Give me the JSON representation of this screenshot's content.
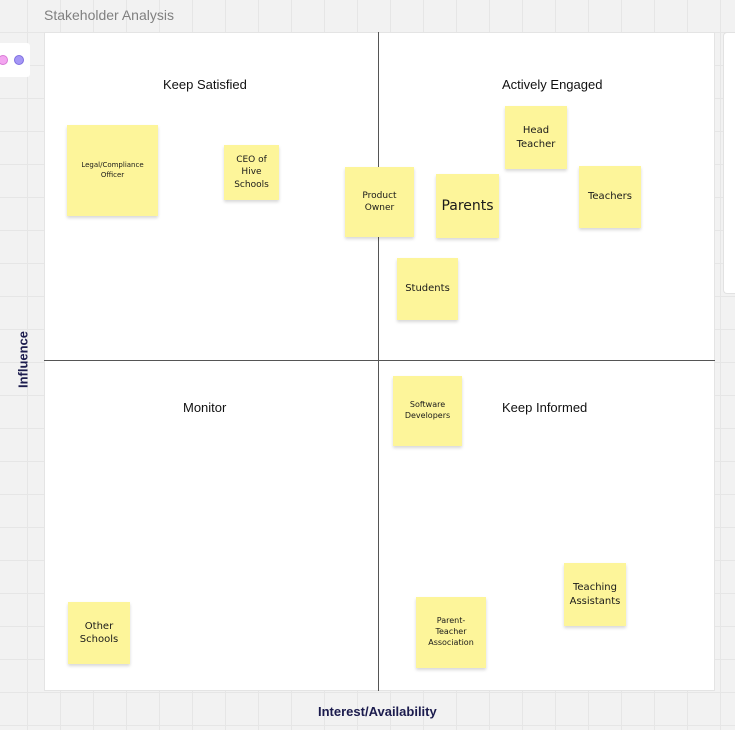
{
  "frame": {
    "title": "Stakeholder Analysis"
  },
  "axes": {
    "x_label": "Interest/Availability",
    "y_label": "Influence"
  },
  "quadrants": {
    "top_left": "Keep Satisfied",
    "top_right": "Actively Engaged",
    "bottom_left": "Monitor",
    "bottom_right": "Keep Informed"
  },
  "notes": {
    "legal": "Legal/Compliance\nOfficer",
    "ceo": "CEO of\nHive\nSchools",
    "product_owner": "Product\nOwner",
    "parents": "Parents",
    "head_teacher": "Head\nTeacher",
    "teachers": "Teachers",
    "students": "Students",
    "software_devs": "Software\nDevelopers",
    "other_schools": "Other\nSchools",
    "pta": "Parent-\nTeacher\nAssociation",
    "teaching_assistants": "Teaching\nAssistants"
  },
  "colors": {
    "sticky_note": "#fdf59a",
    "axis_text": "#1b1b4d",
    "divider": "#555555"
  }
}
